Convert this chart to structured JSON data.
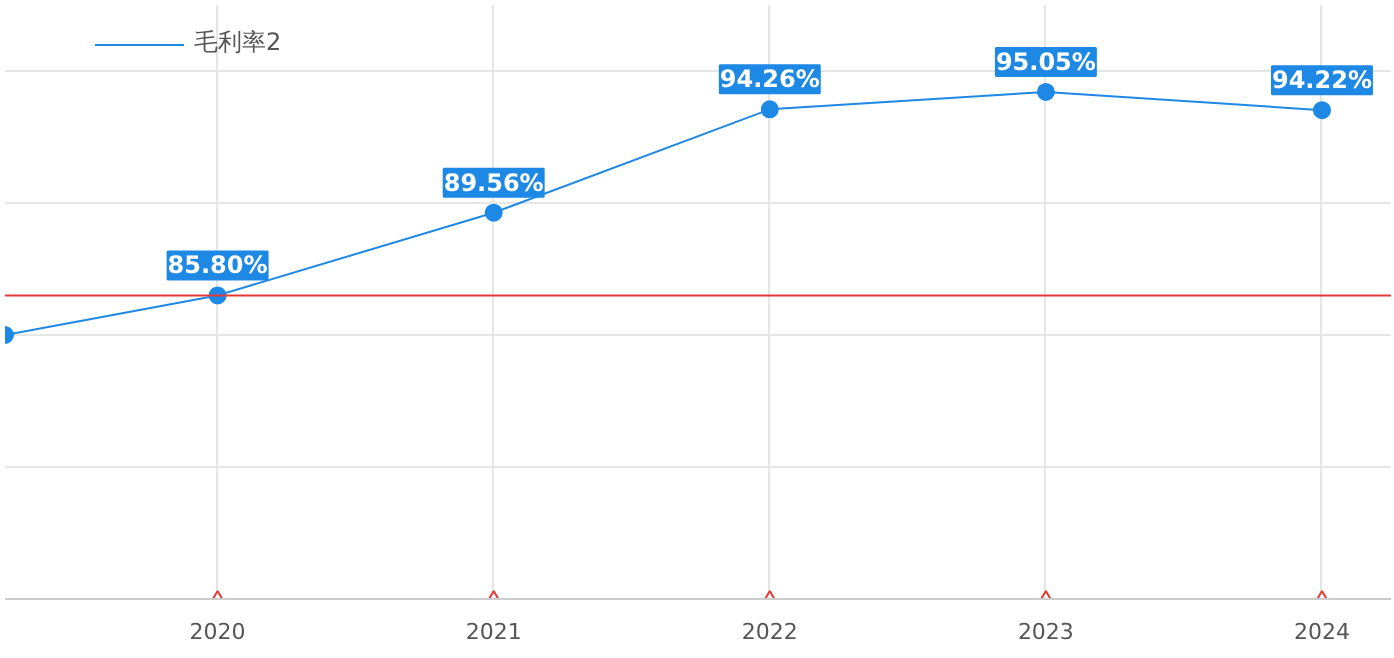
{
  "chart_data": {
    "type": "line",
    "x": [
      2019.23,
      2020,
      2021,
      2022,
      2023,
      2024
    ],
    "xlim": [
      2019.23,
      2024.25
    ],
    "xticks": [
      2020,
      2021,
      2022,
      2023,
      2024
    ],
    "ylim": [
      72,
      99
    ],
    "yticks": [
      {
        "value": 72,
        "label": null
      },
      {
        "value": 78,
        "label": null
      },
      {
        "value": 84,
        "label": null
      },
      {
        "value": 90,
        "label": null
      },
      {
        "value": 96,
        "label": null
      }
    ],
    "tick_labels": "x",
    "grid": true,
    "legend": "top left",
    "marker": "circle",
    "line_style": "solid",
    "series": [
      {
        "name": "毛利率2",
        "color": "#1e88e5",
        "values": [
          84.0,
          85.8,
          89.56,
          94.26,
          95.05,
          94.22
        ],
        "value_labels": [
          null,
          "85.80%",
          "89.56%",
          "94.26%",
          "95.05%",
          "94.22%"
        ]
      },
      {
        "type": "scatter",
        "marker": "triangle",
        "color": "#e53935",
        "x": [
          2020,
          2021,
          2022,
          2023,
          2024
        ],
        "values": [
          72,
          72,
          72,
          72,
          72
        ]
      }
    ],
    "ref_lines": [
      {
        "axis": "y",
        "value": 85.8,
        "color": "#e53935"
      }
    ]
  }
}
